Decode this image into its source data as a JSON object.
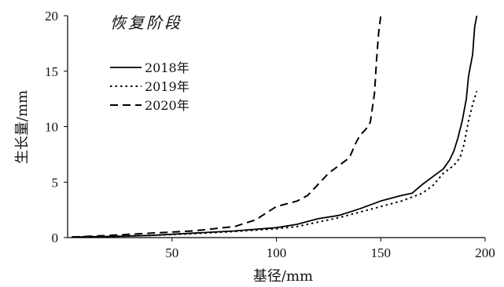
{
  "chart_data": {
    "type": "line",
    "title": "恢复阶段",
    "xlabel": "基径/mm",
    "ylabel": "生长量/mm",
    "xlim": [
      0,
      200
    ],
    "ylim": [
      0,
      20
    ],
    "x_ticks": [
      "50",
      "100",
      "150",
      "200"
    ],
    "y_ticks": [
      "0",
      "5",
      "10",
      "15",
      "20"
    ],
    "grid": false,
    "legend_position": "top-left",
    "series": [
      {
        "name": "2018年",
        "style": "solid",
        "x": [
          2,
          20,
          40,
          60,
          80,
          100,
          110,
          120,
          130,
          140,
          150,
          160,
          165,
          170,
          175,
          180,
          183,
          185,
          187,
          189,
          191,
          192,
          193,
          194,
          195,
          196
        ],
        "y": [
          0.05,
          0.1,
          0.2,
          0.4,
          0.6,
          0.9,
          1.2,
          1.7,
          2.0,
          2.6,
          3.3,
          3.8,
          4.0,
          4.8,
          5.5,
          6.2,
          7.0,
          7.8,
          9.0,
          10.5,
          12.5,
          14.5,
          15.5,
          16.5,
          19.0,
          20.0
        ]
      },
      {
        "name": "2019年",
        "style": "dotted",
        "x": [
          2,
          20,
          40,
          60,
          80,
          100,
          110,
          120,
          130,
          140,
          150,
          160,
          170,
          175,
          180,
          185,
          188,
          190,
          192,
          194,
          196
        ],
        "y": [
          0.05,
          0.1,
          0.2,
          0.35,
          0.55,
          0.8,
          1.0,
          1.4,
          1.8,
          2.3,
          2.8,
          3.3,
          4.0,
          4.7,
          5.8,
          6.5,
          7.2,
          8.5,
          10.5,
          12.0,
          13.2
        ]
      },
      {
        "name": "2020年",
        "style": "dashed",
        "x": [
          2,
          20,
          40,
          60,
          80,
          90,
          100,
          110,
          115,
          120,
          125,
          130,
          135,
          138,
          140,
          143,
          145,
          147,
          148,
          149,
          150
        ],
        "y": [
          0.05,
          0.2,
          0.4,
          0.6,
          1.0,
          1.6,
          2.8,
          3.3,
          3.8,
          4.8,
          5.8,
          6.5,
          7.2,
          8.5,
          9.2,
          9.8,
          10.4,
          13.0,
          16.0,
          18.5,
          20.0
        ]
      }
    ]
  },
  "colors": {
    "line": "#000000",
    "axis": "#000000"
  }
}
